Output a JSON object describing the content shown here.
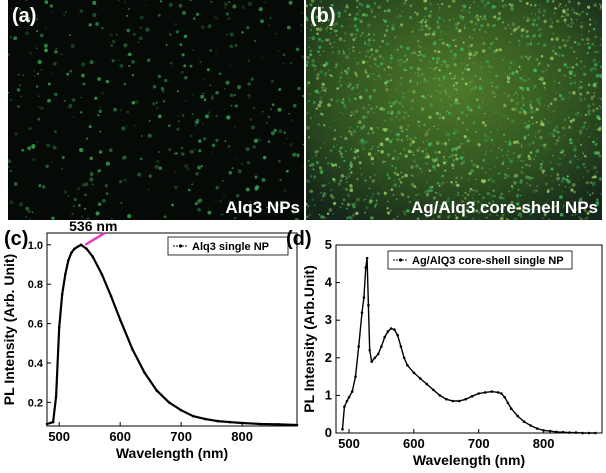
{
  "figure": {
    "panel_a": {
      "label": "(a)",
      "caption": "Alq3 NPs"
    },
    "panel_b": {
      "label": "(b)",
      "caption": "Ag/Alq3 core-shell NPs"
    },
    "colors": {
      "image_bg": "#060a06",
      "glow_dim": "#3fbf5f",
      "glow_bright": "#a6d86a",
      "plot_line": "#000000",
      "annotation_arrow": "#e040c0"
    }
  },
  "chart_data": [
    {
      "type": "line",
      "panel_label": "(c)",
      "xlabel": "Wavelength (nm)",
      "ylabel": "PL Intensity (Arb. Unit)",
      "xlim": [
        480,
        890
      ],
      "ylim": [
        0.08,
        1.06
      ],
      "x_ticks": [
        500,
        600,
        700,
        800
      ],
      "x_tick_labels": [
        "500",
        "600",
        "700",
        "800"
      ],
      "y_ticks": [
        0.2,
        0.4,
        0.6,
        0.8,
        1.0
      ],
      "y_tick_labels": [
        "0.2",
        "0.4",
        "0.6",
        "0.8",
        "1.0"
      ],
      "legend": "Alq3 single NP",
      "legend_position": "top-right",
      "annotation": {
        "text": "536 nm",
        "x": 536,
        "y": 0.99
      },
      "series": [
        {
          "name": "Alq3 single NP",
          "x": [
            480,
            490,
            495,
            500,
            505,
            510,
            515,
            520,
            525,
            530,
            536,
            545,
            555,
            570,
            585,
            600,
            620,
            640,
            660,
            680,
            700,
            720,
            740,
            760,
            780,
            800,
            830,
            860,
            890
          ],
          "y": [
            0.09,
            0.1,
            0.23,
            0.58,
            0.75,
            0.85,
            0.92,
            0.96,
            0.98,
            0.99,
            1.0,
            0.98,
            0.94,
            0.85,
            0.74,
            0.62,
            0.47,
            0.35,
            0.26,
            0.2,
            0.16,
            0.13,
            0.115,
            0.105,
            0.1,
            0.095,
            0.09,
            0.088,
            0.085
          ]
        }
      ]
    },
    {
      "type": "line",
      "panel_label": "(d)",
      "xlabel": "Wavelength (nm)",
      "ylabel": "PL Intensity (Arb.Unit)",
      "xlim": [
        480,
        890
      ],
      "ylim": [
        0,
        5
      ],
      "x_ticks": [
        500,
        600,
        700,
        800
      ],
      "x_tick_labels": [
        "500",
        "600",
        "700",
        "800"
      ],
      "y_ticks": [
        0,
        1,
        2,
        3,
        4,
        5
      ],
      "y_tick_labels": [
        "0",
        "1",
        "2",
        "3",
        "4",
        "5"
      ],
      "legend": "Ag/AlQ3 core-shell single NP",
      "legend_position": "top-right",
      "series": [
        {
          "name": "Ag/AlQ3 core-shell single NP",
          "x": [
            490,
            493,
            497,
            500,
            505,
            510,
            515,
            520,
            523,
            526,
            528,
            530,
            532,
            535,
            540,
            545,
            550,
            555,
            560,
            565,
            570,
            575,
            580,
            585,
            590,
            600,
            610,
            620,
            630,
            640,
            650,
            660,
            670,
            680,
            690,
            700,
            710,
            720,
            730,
            735,
            740,
            745,
            750,
            760,
            770,
            780,
            790,
            800,
            810,
            820,
            830,
            840,
            850,
            860,
            870,
            880
          ],
          "y": [
            0.1,
            0.7,
            0.85,
            0.95,
            1.1,
            1.5,
            2.3,
            3.2,
            3.6,
            4.4,
            4.65,
            3.4,
            2.2,
            1.9,
            2.0,
            2.1,
            2.3,
            2.55,
            2.7,
            2.78,
            2.75,
            2.6,
            2.3,
            2.0,
            1.8,
            1.6,
            1.45,
            1.3,
            1.15,
            1.0,
            0.9,
            0.85,
            0.85,
            0.9,
            0.98,
            1.05,
            1.08,
            1.1,
            1.08,
            1.05,
            0.95,
            0.8,
            0.65,
            0.45,
            0.3,
            0.2,
            0.12,
            0.07,
            0.05,
            0.03,
            0.02,
            0.01,
            0.01,
            0.0,
            0.0,
            0.0
          ]
        }
      ]
    }
  ]
}
